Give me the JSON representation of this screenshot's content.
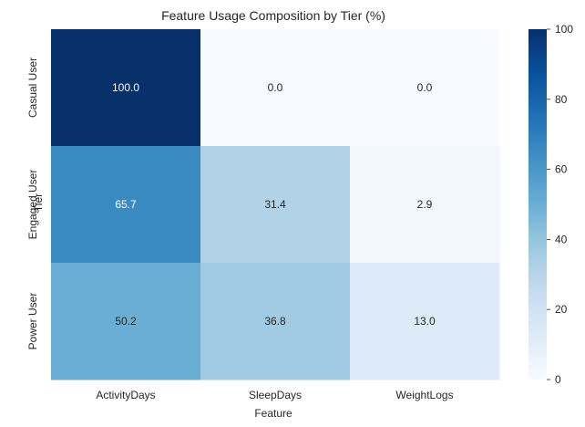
{
  "chart_data": {
    "type": "heatmap",
    "title": "Feature Usage Composition by Tier (%)",
    "xlabel": "Feature",
    "ylabel": "Tier",
    "x_categories": [
      "ActivityDays",
      "SleepDays",
      "WeightLogs"
    ],
    "y_categories": [
      "Casual User",
      "Engaged User",
      "Power User"
    ],
    "values": [
      [
        100.0,
        0.0,
        0.0
      ],
      [
        65.7,
        31.4,
        2.9
      ],
      [
        50.2,
        36.8,
        13.0
      ]
    ],
    "value_labels": [
      [
        "100.0",
        "0.0",
        "0.0"
      ],
      [
        "65.7",
        "31.4",
        "2.9"
      ],
      [
        "50.2",
        "36.8",
        "13.0"
      ]
    ],
    "colorbar": {
      "range": [
        0,
        100
      ],
      "ticks": [
        "0",
        "20",
        "40",
        "60",
        "80",
        "100"
      ],
      "colormap": "Blues"
    }
  }
}
